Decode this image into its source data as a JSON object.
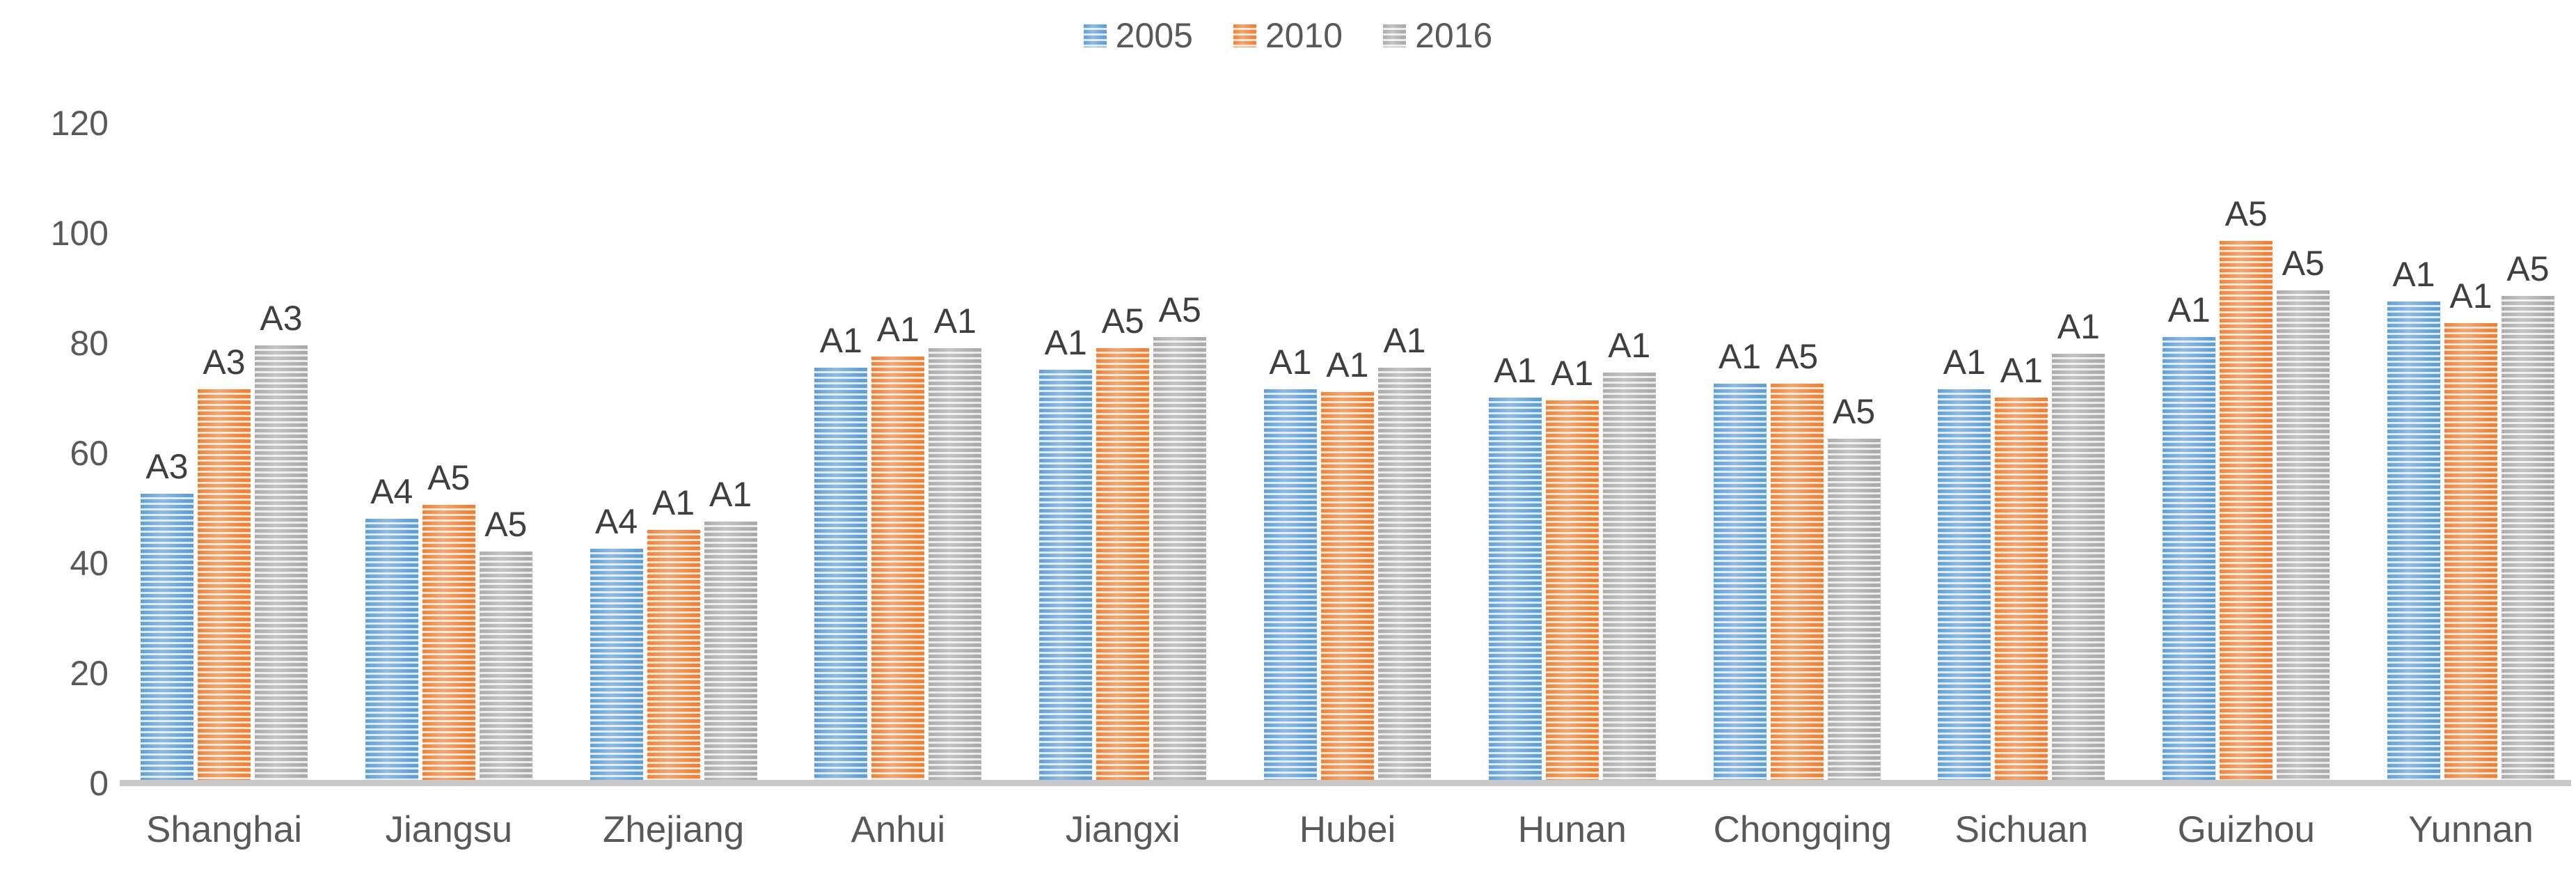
{
  "chart_data": {
    "type": "bar",
    "title": "",
    "xlabel": "",
    "ylabel": "",
    "categories": [
      "Shanghai",
      "Jiangsu",
      "Zhejiang",
      "Anhui",
      "Jiangxi",
      "Hubei",
      "Hunan",
      "Chongqing",
      "Sichuan",
      "Guizhou",
      "Yunnan"
    ],
    "series": [
      {
        "name": "2005",
        "color": "#5B9BD5",
        "stripe_light": "#DCE9F6",
        "values": [
          52,
          47.5,
          42,
          75,
          74.5,
          71,
          69.5,
          72,
          71,
          80.5,
          87
        ],
        "point_labels": [
          "A3",
          "A4",
          "A4",
          "A1",
          "A1",
          "A1",
          "A1",
          "A1",
          "A1",
          "A1",
          "A1"
        ]
      },
      {
        "name": "2010",
        "color": "#ED7D31",
        "stripe_light": "#FBE2CF",
        "values": [
          71,
          50,
          45.5,
          77,
          78.5,
          70.5,
          69,
          72,
          69.5,
          98,
          83
        ],
        "point_labels": [
          "A3",
          "A5",
          "A1",
          "A1",
          "A5",
          "A1",
          "A1",
          "A5",
          "A1",
          "A5",
          "A1"
        ]
      },
      {
        "name": "2016",
        "color": "#A8A8A8",
        "stripe_light": "#EBEBEB",
        "values": [
          79,
          41.5,
          47,
          78.5,
          80.5,
          75,
          74,
          62,
          77.5,
          89,
          88
        ],
        "point_labels": [
          "A3",
          "A5",
          "A1",
          "A1",
          "A5",
          "A1",
          "A1",
          "A5",
          "A1",
          "A5",
          "A5"
        ]
      }
    ],
    "ylim": [
      0,
      120
    ],
    "yticks": [
      0,
      20,
      40,
      60,
      80,
      100,
      120
    ],
    "grid": false,
    "legend_position": "top-center",
    "bar_value_labels_shown": true
  },
  "colors": {
    "axis_line": "#C8C8C8",
    "tick_text": "#595959",
    "category_text": "#595959",
    "bar_label_text": "#3F3F3F",
    "legend_text": "#595959",
    "background": "#FFFFFF"
  }
}
